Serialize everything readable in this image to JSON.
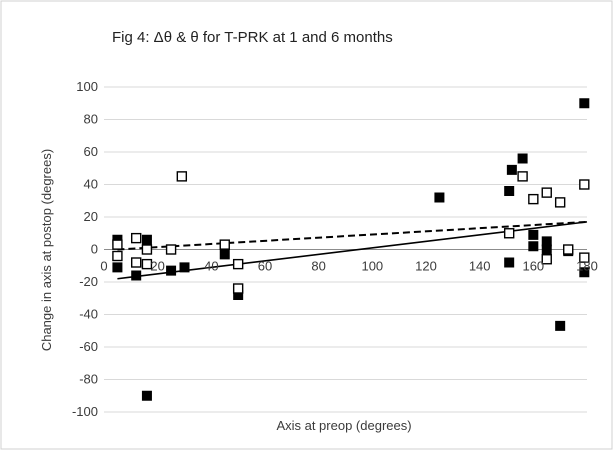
{
  "chart_data": {
    "type": "scatter",
    "title": "Fig 4: Δθ & θ for T-PRK at 1 and 6 months",
    "xlabel": "Axis at preop (degrees)",
    "ylabel": "Change in axis at postop (degrees)",
    "xlim": [
      0,
      180
    ],
    "ylim": [
      -100,
      100
    ],
    "x_ticks": [
      0,
      20,
      40,
      60,
      80,
      100,
      120,
      140,
      160,
      180
    ],
    "x_tick_labels": [
      "0",
      "20",
      "40",
      "60",
      "80",
      "100",
      "120",
      "140",
      "160",
      "180"
    ],
    "y_ticks": [
      100,
      80,
      60,
      40,
      20,
      0,
      -20,
      -40,
      -60,
      -80,
      -100
    ],
    "y_tick_labels": [
      "100",
      "80",
      "60",
      "40",
      "20",
      "0",
      "-20",
      "-40",
      "-60",
      "-80",
      "-100"
    ],
    "grid": "horizontal",
    "legend": "none",
    "series": [
      {
        "marker": "filled-square",
        "color": "#000000",
        "points": [
          [
            5,
            6
          ],
          [
            5,
            -11
          ],
          [
            12,
            -16
          ],
          [
            16,
            6
          ],
          [
            16,
            -90
          ],
          [
            25,
            -13
          ],
          [
            30,
            -11
          ],
          [
            45,
            -3
          ],
          [
            50,
            -28
          ],
          [
            125,
            32
          ],
          [
            151,
            36
          ],
          [
            151,
            -8
          ],
          [
            152,
            49
          ],
          [
            156,
            56
          ],
          [
            160,
            9
          ],
          [
            160,
            2
          ],
          [
            165,
            5
          ],
          [
            165,
            0
          ],
          [
            170,
            -47
          ],
          [
            173,
            -1
          ],
          [
            179,
            90
          ],
          [
            179,
            -14
          ]
        ]
      },
      {
        "marker": "open-square",
        "color": "#000000",
        "points": [
          [
            5,
            3
          ],
          [
            5,
            -4
          ],
          [
            12,
            7
          ],
          [
            12,
            -8
          ],
          [
            16,
            0
          ],
          [
            16,
            -9
          ],
          [
            25,
            0
          ],
          [
            29,
            45
          ],
          [
            45,
            3
          ],
          [
            50,
            -24
          ],
          [
            50,
            -9
          ],
          [
            151,
            10
          ],
          [
            156,
            45
          ],
          [
            160,
            31
          ],
          [
            165,
            35
          ],
          [
            165,
            -6
          ],
          [
            170,
            29
          ],
          [
            173,
            0
          ],
          [
            179,
            40
          ],
          [
            179,
            -5
          ]
        ]
      }
    ],
    "trendlines": [
      {
        "style": "dashed",
        "color": "#000000",
        "x": [
          5,
          180
        ],
        "y": [
          0,
          17
        ]
      },
      {
        "style": "solid",
        "color": "#000000",
        "x": [
          5,
          180
        ],
        "y": [
          -18,
          17
        ]
      }
    ]
  }
}
